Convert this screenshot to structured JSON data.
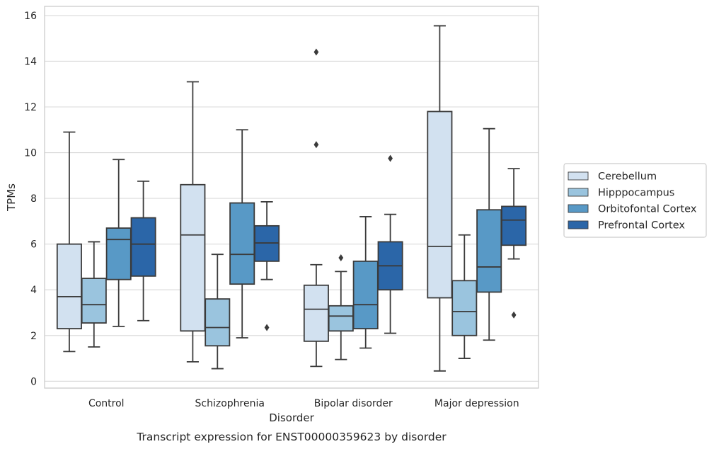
{
  "caption": "Transcript expression for ENST00000359623 by disorder",
  "chart_data": {
    "type": "box",
    "title": "",
    "xlabel": "Disorder",
    "ylabel": "TPMs",
    "ylim": [
      -0.3,
      16.4
    ],
    "yticks": [
      0,
      2,
      4,
      6,
      8,
      10,
      12,
      14,
      16
    ],
    "grid": true,
    "legend_position": "right",
    "categories": [
      "Control",
      "Schizophrenia",
      "Bipolar disorder",
      "Major depression"
    ],
    "series": [
      {
        "name": "Cerebellum",
        "color": "#d2e1f0",
        "boxes": [
          {
            "whisker_low": 1.3,
            "q1": 2.3,
            "median": 3.7,
            "q3": 6.0,
            "whisker_high": 10.9,
            "outliers": []
          },
          {
            "whisker_low": 0.85,
            "q1": 2.2,
            "median": 6.4,
            "q3": 8.6,
            "whisker_high": 13.1,
            "outliers": []
          },
          {
            "whisker_low": 0.65,
            "q1": 1.75,
            "median": 3.15,
            "q3": 4.2,
            "whisker_high": 5.1,
            "outliers": [
              10.35,
              14.4
            ]
          },
          {
            "whisker_low": 0.45,
            "q1": 3.65,
            "median": 5.9,
            "q3": 11.8,
            "whisker_high": 15.55,
            "outliers": []
          }
        ]
      },
      {
        "name": "Hipppocampus",
        "color": "#9ac4de",
        "boxes": [
          {
            "whisker_low": 1.5,
            "q1": 2.55,
            "median": 3.35,
            "q3": 4.5,
            "whisker_high": 6.1,
            "outliers": []
          },
          {
            "whisker_low": 0.55,
            "q1": 1.55,
            "median": 2.35,
            "q3": 3.6,
            "whisker_high": 5.55,
            "outliers": []
          },
          {
            "whisker_low": 0.95,
            "q1": 2.2,
            "median": 2.85,
            "q3": 3.3,
            "whisker_high": 4.8,
            "outliers": [
              5.4
            ]
          },
          {
            "whisker_low": 1.0,
            "q1": 2.0,
            "median": 3.05,
            "q3": 4.4,
            "whisker_high": 6.4,
            "outliers": []
          }
        ]
      },
      {
        "name": "Orbitofontal Cortex",
        "color": "#5899c6",
        "boxes": [
          {
            "whisker_low": 2.4,
            "q1": 4.45,
            "median": 6.2,
            "q3": 6.7,
            "whisker_high": 9.7,
            "outliers": []
          },
          {
            "whisker_low": 1.9,
            "q1": 4.25,
            "median": 5.55,
            "q3": 7.8,
            "whisker_high": 11.0,
            "outliers": []
          },
          {
            "whisker_low": 1.45,
            "q1": 2.3,
            "median": 3.35,
            "q3": 5.25,
            "whisker_high": 7.2,
            "outliers": []
          },
          {
            "whisker_low": 1.8,
            "q1": 3.9,
            "median": 5.0,
            "q3": 7.5,
            "whisker_high": 11.05,
            "outliers": []
          }
        ]
      },
      {
        "name": "Prefrontal Cortex",
        "color": "#2b66a8",
        "boxes": [
          {
            "whisker_low": 2.65,
            "q1": 4.6,
            "median": 6.0,
            "q3": 7.15,
            "whisker_high": 8.75,
            "outliers": []
          },
          {
            "whisker_low": 4.45,
            "q1": 5.25,
            "median": 6.05,
            "q3": 6.8,
            "whisker_high": 7.85,
            "outliers": [
              2.35
            ]
          },
          {
            "whisker_low": 2.1,
            "q1": 4.0,
            "median": 5.05,
            "q3": 6.1,
            "whisker_high": 7.3,
            "outliers": [
              9.75
            ]
          },
          {
            "whisker_low": 5.35,
            "q1": 5.95,
            "median": 7.05,
            "q3": 7.65,
            "whisker_high": 9.3,
            "outliers": [
              2.9
            ]
          }
        ]
      }
    ]
  }
}
